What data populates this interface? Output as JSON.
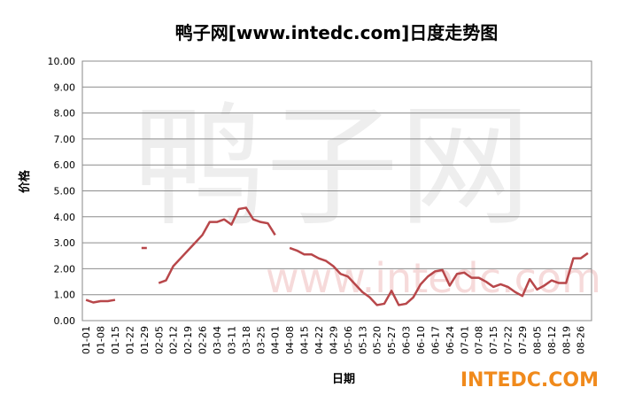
{
  "chart_data": {
    "type": "line",
    "title": "鸭子网[www.intedc.com]日度走势图",
    "y_label": "价格",
    "x_label": "日期",
    "watermark": {
      "logo_text": "鸭子网",
      "url_text": "www.intedc.com",
      "corner_text": "INTEDC.COM"
    },
    "categories": [
      "01-01",
      null,
      "01-08",
      null,
      "01-15",
      null,
      "01-22",
      null,
      "01-29",
      null,
      "02-05",
      null,
      "02-12",
      null,
      "02-19",
      null,
      "02-26",
      null,
      "03-04",
      null,
      "03-11",
      null,
      "03-18",
      null,
      "03-25",
      null,
      "04-01",
      null,
      "04-08",
      null,
      "04-15",
      null,
      "04-22",
      null,
      "04-29",
      null,
      "05-06",
      null,
      "05-13",
      null,
      "05-20",
      null,
      "05-27",
      null,
      "06-03",
      null,
      "06-10",
      null,
      "06-17",
      null,
      "06-24",
      null,
      "07-01",
      null,
      "07-08",
      null,
      "07-15",
      null,
      "07-22",
      null,
      "07-29",
      null,
      "08-05",
      null,
      "08-12",
      null,
      "08-19",
      null,
      "08-26",
      null
    ],
    "series": [
      {
        "name": "价格",
        "color": "#b8474a",
        "values": [
          0.8,
          0.7,
          0.75,
          0.75,
          0.8,
          null,
          null,
          null,
          2.8,
          null,
          1.45,
          1.55,
          2.1,
          2.4,
          2.7,
          3.0,
          3.3,
          3.8,
          3.8,
          3.9,
          3.7,
          4.3,
          4.35,
          3.9,
          3.8,
          3.75,
          3.3,
          null,
          2.8,
          2.7,
          2.55,
          2.55,
          2.4,
          2.3,
          2.1,
          1.8,
          1.7,
          1.4,
          1.1,
          0.9,
          0.6,
          0.65,
          1.15,
          0.6,
          0.65,
          0.9,
          1.4,
          1.7,
          1.9,
          1.95,
          1.35,
          1.8,
          1.85,
          1.65,
          1.65,
          1.5,
          1.3,
          1.4,
          1.3,
          1.1,
          0.95,
          1.6,
          1.2,
          1.35,
          1.55,
          1.45,
          1.45,
          2.4,
          2.4,
          2.6
        ]
      }
    ],
    "ylim": [
      0,
      10
    ],
    "yticks": [
      {
        "value": 0,
        "label": "0.00"
      },
      {
        "value": 1,
        "label": "1.00"
      },
      {
        "value": 2,
        "label": "2.00"
      },
      {
        "value": 3,
        "label": "3.00"
      },
      {
        "value": 4,
        "label": "4.00"
      },
      {
        "value": 5,
        "label": "5.00"
      },
      {
        "value": 6,
        "label": "6.00"
      },
      {
        "value": 7,
        "label": "7.00"
      },
      {
        "value": 8,
        "label": "8.00"
      },
      {
        "value": 9,
        "label": "9.00"
      },
      {
        "value": 10,
        "label": "10.00"
      }
    ],
    "grid": true
  }
}
